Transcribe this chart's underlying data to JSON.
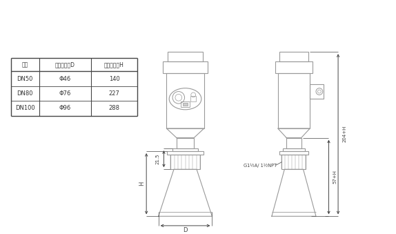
{
  "background": "#ffffff",
  "line_color": "#999999",
  "dark_line": "#444444",
  "text_color": "#333333",
  "table_headers": [
    "法兰",
    "喇叭口直径D",
    "喇叭口高度H"
  ],
  "table_rows": [
    [
      "DN50",
      "Φ46",
      "140"
    ],
    [
      "DN80",
      "Φ76",
      "227"
    ],
    [
      "DN100",
      "Φ96",
      "288"
    ]
  ],
  "dim_21_5": "21.5",
  "dim_H": "H",
  "dim_D": "D",
  "dim_204H": "204+H",
  "dim_57H": "57+H",
  "thread_label": "G1½A/ 1½NPT"
}
